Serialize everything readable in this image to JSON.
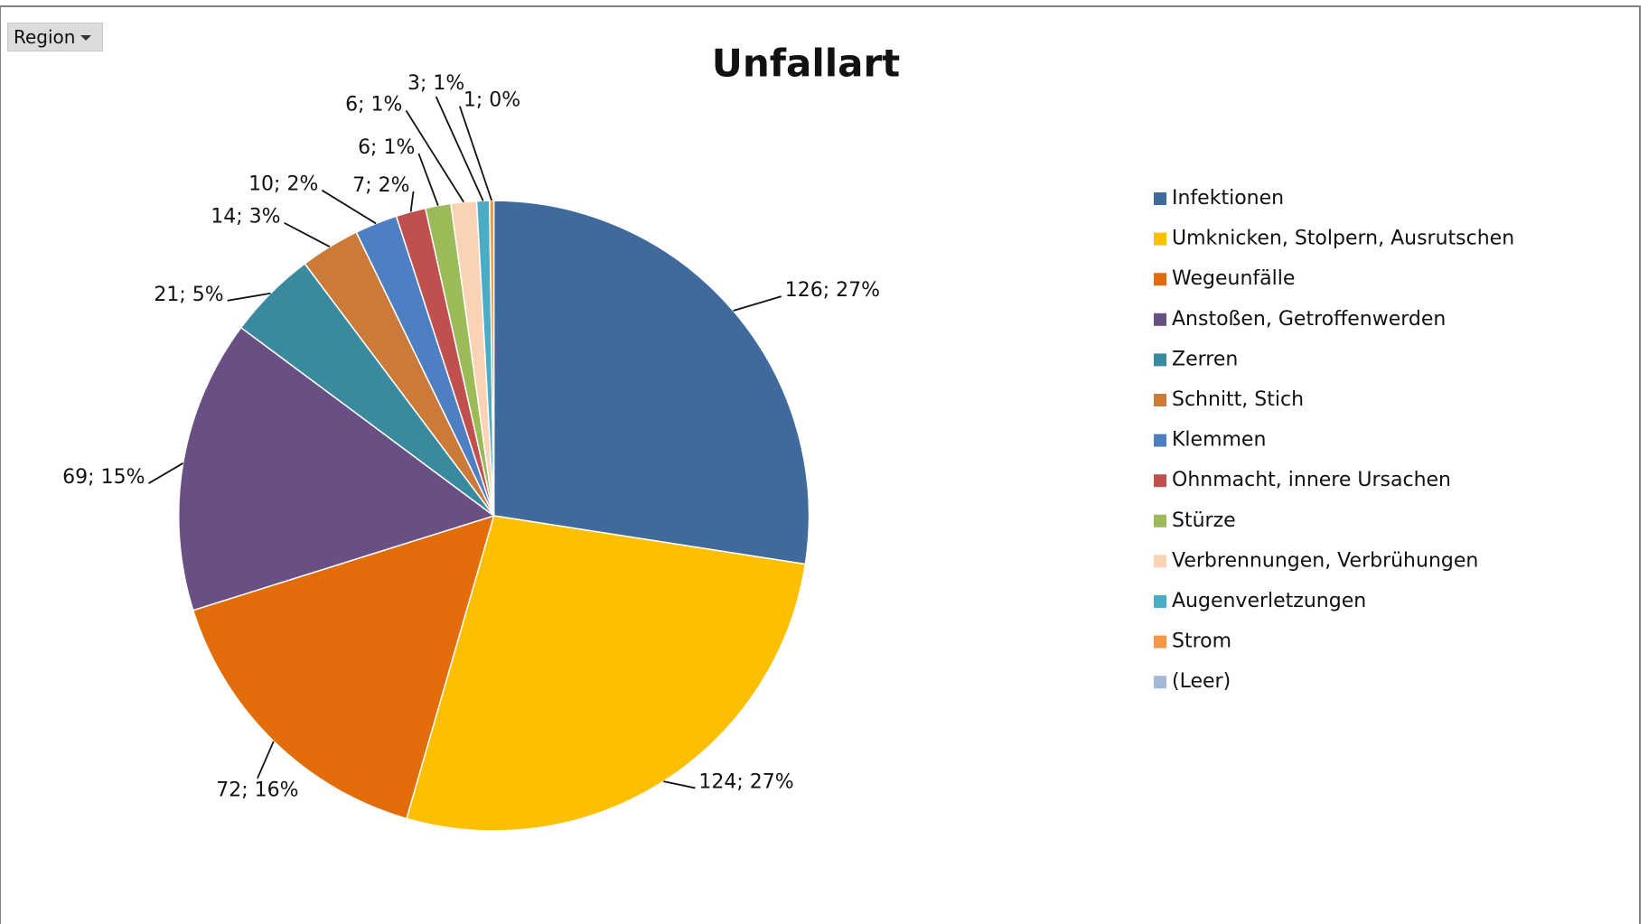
{
  "filter_button": "Region",
  "chart_data": {
    "type": "pie",
    "title": "Unfallart",
    "categories": [
      "Infektionen",
      "Umknicken, Stolpern, Ausrutschen",
      "Wegeunfälle",
      "Anstoßen, Getroffenwerden",
      "Zerren",
      "Schnitt, Stich",
      "Klemmen",
      "Ohnmacht, innere Ursachen",
      "Stürze",
      "Verbrennungen, Verbrühungen",
      "Augenverletzungen",
      "Strom",
      "(Leer)"
    ],
    "values": [
      126,
      124,
      72,
      69,
      21,
      14,
      10,
      7,
      6,
      6,
      3,
      1,
      null
    ],
    "value_labels": [
      "126; 27%",
      "124; 27%",
      "72; 16%",
      "69; 15%",
      "21; 5%",
      "14; 3%",
      "10; 2%",
      "7; 2%",
      "6; 1%",
      "6; 1%",
      "3; 1%",
      "1; 0%",
      null
    ],
    "colors": [
      "#3f6a9b",
      "#fdbf00",
      "#e36c0a",
      "#684f84",
      "#3a8a9f",
      "#cc7a3a",
      "#4e7fc2",
      "#c0504d",
      "#9bbb59",
      "#fad2b5",
      "#4bacc6",
      "#f79646",
      "#a5b9d6"
    ],
    "legend": "right"
  }
}
